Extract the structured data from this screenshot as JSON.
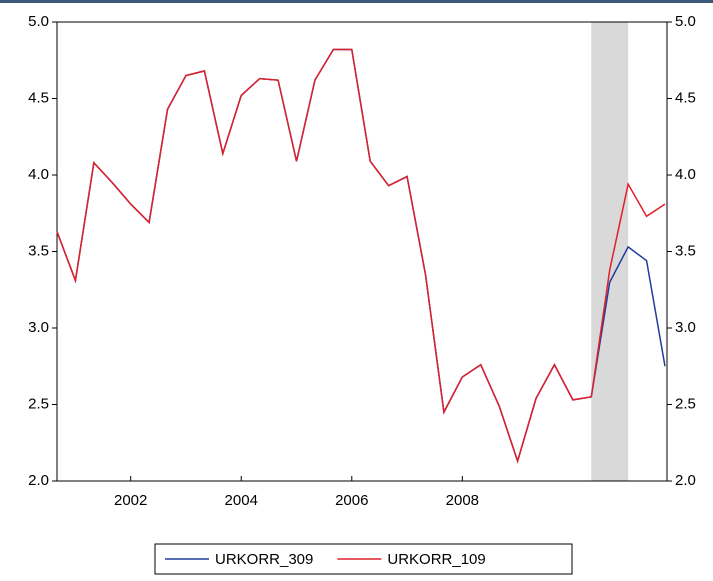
{
  "chart_data": {
    "type": "line",
    "categories": [
      null,
      null,
      null,
      null,
      "2002",
      null,
      null,
      null,
      null,
      null,
      "2004",
      null,
      null,
      null,
      null,
      null,
      "2006",
      null,
      null,
      null,
      null,
      null,
      "2008",
      null,
      null,
      null,
      null,
      null,
      null,
      null,
      null,
      null,
      null,
      null
    ],
    "series": [
      {
        "name": "URKORR_309",
        "color": "#1f3d99",
        "values": [
          3.63,
          3.31,
          4.08,
          3.95,
          3.81,
          3.69,
          4.43,
          4.65,
          4.68,
          4.14,
          4.52,
          4.63,
          4.62,
          4.09,
          4.62,
          4.82,
          4.82,
          4.09,
          3.93,
          3.99,
          3.35,
          2.45,
          2.68,
          2.76,
          2.49,
          2.13,
          2.54,
          2.76,
          2.53,
          2.55,
          3.3,
          3.53,
          3.44,
          2.75
        ]
      },
      {
        "name": "URKORR_109",
        "color": "#e0202b",
        "values": [
          3.63,
          3.31,
          4.08,
          3.95,
          3.81,
          3.69,
          4.43,
          4.65,
          4.68,
          4.14,
          4.52,
          4.63,
          4.62,
          4.09,
          4.62,
          4.82,
          4.82,
          4.09,
          3.93,
          3.99,
          3.35,
          2.45,
          2.68,
          2.76,
          2.49,
          2.13,
          2.54,
          2.76,
          2.53,
          2.55,
          3.38,
          3.94,
          3.73,
          3.81
        ]
      }
    ],
    "ylim": [
      2.0,
      5.0
    ],
    "yticks": [
      {
        "value": 2,
        "label": "2.0"
      },
      2.5,
      {
        "value": 3,
        "label": "3.0"
      },
      3.5,
      {
        "value": 4,
        "label": "4.0"
      },
      4.5,
      {
        "value": 5,
        "label": "5.0"
      }
    ],
    "y2lim": [
      2.0,
      5.0
    ],
    "y2ticks": [
      {
        "value": 2,
        "label": "2.0"
      },
      2.5,
      {
        "value": 3,
        "label": "3.0"
      },
      3.5,
      {
        "value": 4,
        "label": "4.0"
      },
      4.5,
      {
        "value": 5,
        "label": "5.0"
      }
    ],
    "shade_from": 29,
    "shade_to": 31,
    "shade_color": "#d9d9d9",
    "grid": false,
    "legend": "bottom"
  }
}
